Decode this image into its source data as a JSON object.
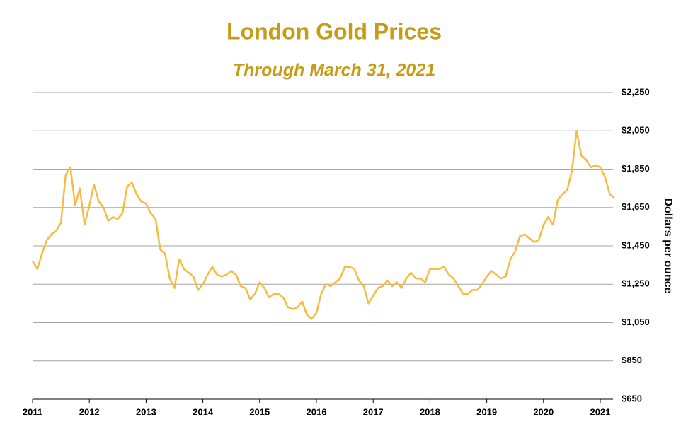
{
  "chart_data": {
    "type": "line",
    "title": "London Gold Prices",
    "subtitle": "Through March 31, 2021",
    "y_axis_label": "Dollars per ounce",
    "x": [
      2011,
      2011.083,
      2011.167,
      2011.25,
      2011.333,
      2011.417,
      2011.5,
      2011.583,
      2011.667,
      2011.75,
      2011.833,
      2011.917,
      2012,
      2012.083,
      2012.167,
      2012.25,
      2012.333,
      2012.417,
      2012.5,
      2012.583,
      2012.667,
      2012.75,
      2012.833,
      2012.917,
      2013,
      2013.083,
      2013.167,
      2013.25,
      2013.333,
      2013.417,
      2013.5,
      2013.583,
      2013.667,
      2013.75,
      2013.833,
      2013.917,
      2014,
      2014.083,
      2014.167,
      2014.25,
      2014.333,
      2014.417,
      2014.5,
      2014.583,
      2014.667,
      2014.75,
      2014.833,
      2014.917,
      2015,
      2015.083,
      2015.167,
      2015.25,
      2015.333,
      2015.417,
      2015.5,
      2015.583,
      2015.667,
      2015.75,
      2015.833,
      2015.917,
      2016,
      2016.083,
      2016.167,
      2016.25,
      2016.333,
      2016.417,
      2016.5,
      2016.583,
      2016.667,
      2016.75,
      2016.833,
      2016.917,
      2017,
      2017.083,
      2017.167,
      2017.25,
      2017.333,
      2017.417,
      2017.5,
      2017.583,
      2017.667,
      2017.75,
      2017.833,
      2017.917,
      2018,
      2018.083,
      2018.167,
      2018.25,
      2018.333,
      2018.417,
      2018.5,
      2018.583,
      2018.667,
      2018.75,
      2018.833,
      2018.917,
      2019,
      2019.083,
      2019.167,
      2019.25,
      2019.333,
      2019.417,
      2019.5,
      2019.583,
      2019.667,
      2019.75,
      2019.833,
      2019.917,
      2020,
      2020.083,
      2020.167,
      2020.25,
      2020.333,
      2020.417,
      2020.5,
      2020.583,
      2020.667,
      2020.75,
      2020.833,
      2020.917,
      2021,
      2021.083,
      2021.167,
      2021.25
    ],
    "series": [
      {
        "name": "London gold price",
        "color": "#f6bb42",
        "values": [
          1370,
          1330,
          1410,
          1480,
          1510,
          1530,
          1570,
          1820,
          1860,
          1660,
          1750,
          1560,
          1660,
          1770,
          1680,
          1650,
          1580,
          1600,
          1590,
          1620,
          1760,
          1780,
          1720,
          1680,
          1670,
          1620,
          1590,
          1430,
          1410,
          1280,
          1230,
          1380,
          1330,
          1310,
          1290,
          1220,
          1250,
          1300,
          1340,
          1300,
          1290,
          1300,
          1320,
          1300,
          1240,
          1230,
          1170,
          1200,
          1260,
          1230,
          1180,
          1200,
          1200,
          1180,
          1130,
          1120,
          1130,
          1160,
          1090,
          1070,
          1100,
          1200,
          1250,
          1240,
          1260,
          1280,
          1340,
          1340,
          1330,
          1270,
          1240,
          1150,
          1190,
          1230,
          1240,
          1270,
          1240,
          1260,
          1230,
          1280,
          1310,
          1280,
          1280,
          1260,
          1330,
          1330,
          1330,
          1340,
          1300,
          1280,
          1240,
          1200,
          1200,
          1220,
          1220,
          1250,
          1290,
          1320,
          1300,
          1280,
          1290,
          1380,
          1420,
          1500,
          1510,
          1490,
          1470,
          1480,
          1560,
          1600,
          1560,
          1690,
          1720,
          1740,
          1840,
          2050,
          1920,
          1900,
          1860,
          1870,
          1860,
          1810,
          1720,
          1700
        ]
      }
    ],
    "xlim": [
      2011,
      2021.25
    ],
    "xticks": [
      2011,
      2012,
      2013,
      2014,
      2015,
      2016,
      2017,
      2018,
      2019,
      2020,
      2021
    ],
    "ylim": [
      650,
      2250
    ],
    "yticks": [
      {
        "value": 650,
        "label": "$650"
      },
      {
        "value": 850,
        "label": "$850"
      },
      {
        "value": 1050,
        "label": "$1,050"
      },
      {
        "value": 1250,
        "label": "$1,250"
      },
      {
        "value": 1450,
        "label": "$1,450"
      },
      {
        "value": 1650,
        "label": "$1,650"
      },
      {
        "value": 1850,
        "label": "$1,850"
      },
      {
        "value": 2050,
        "label": "$2,050"
      },
      {
        "value": 2250,
        "label": "$2,250"
      }
    ],
    "grid": true
  }
}
